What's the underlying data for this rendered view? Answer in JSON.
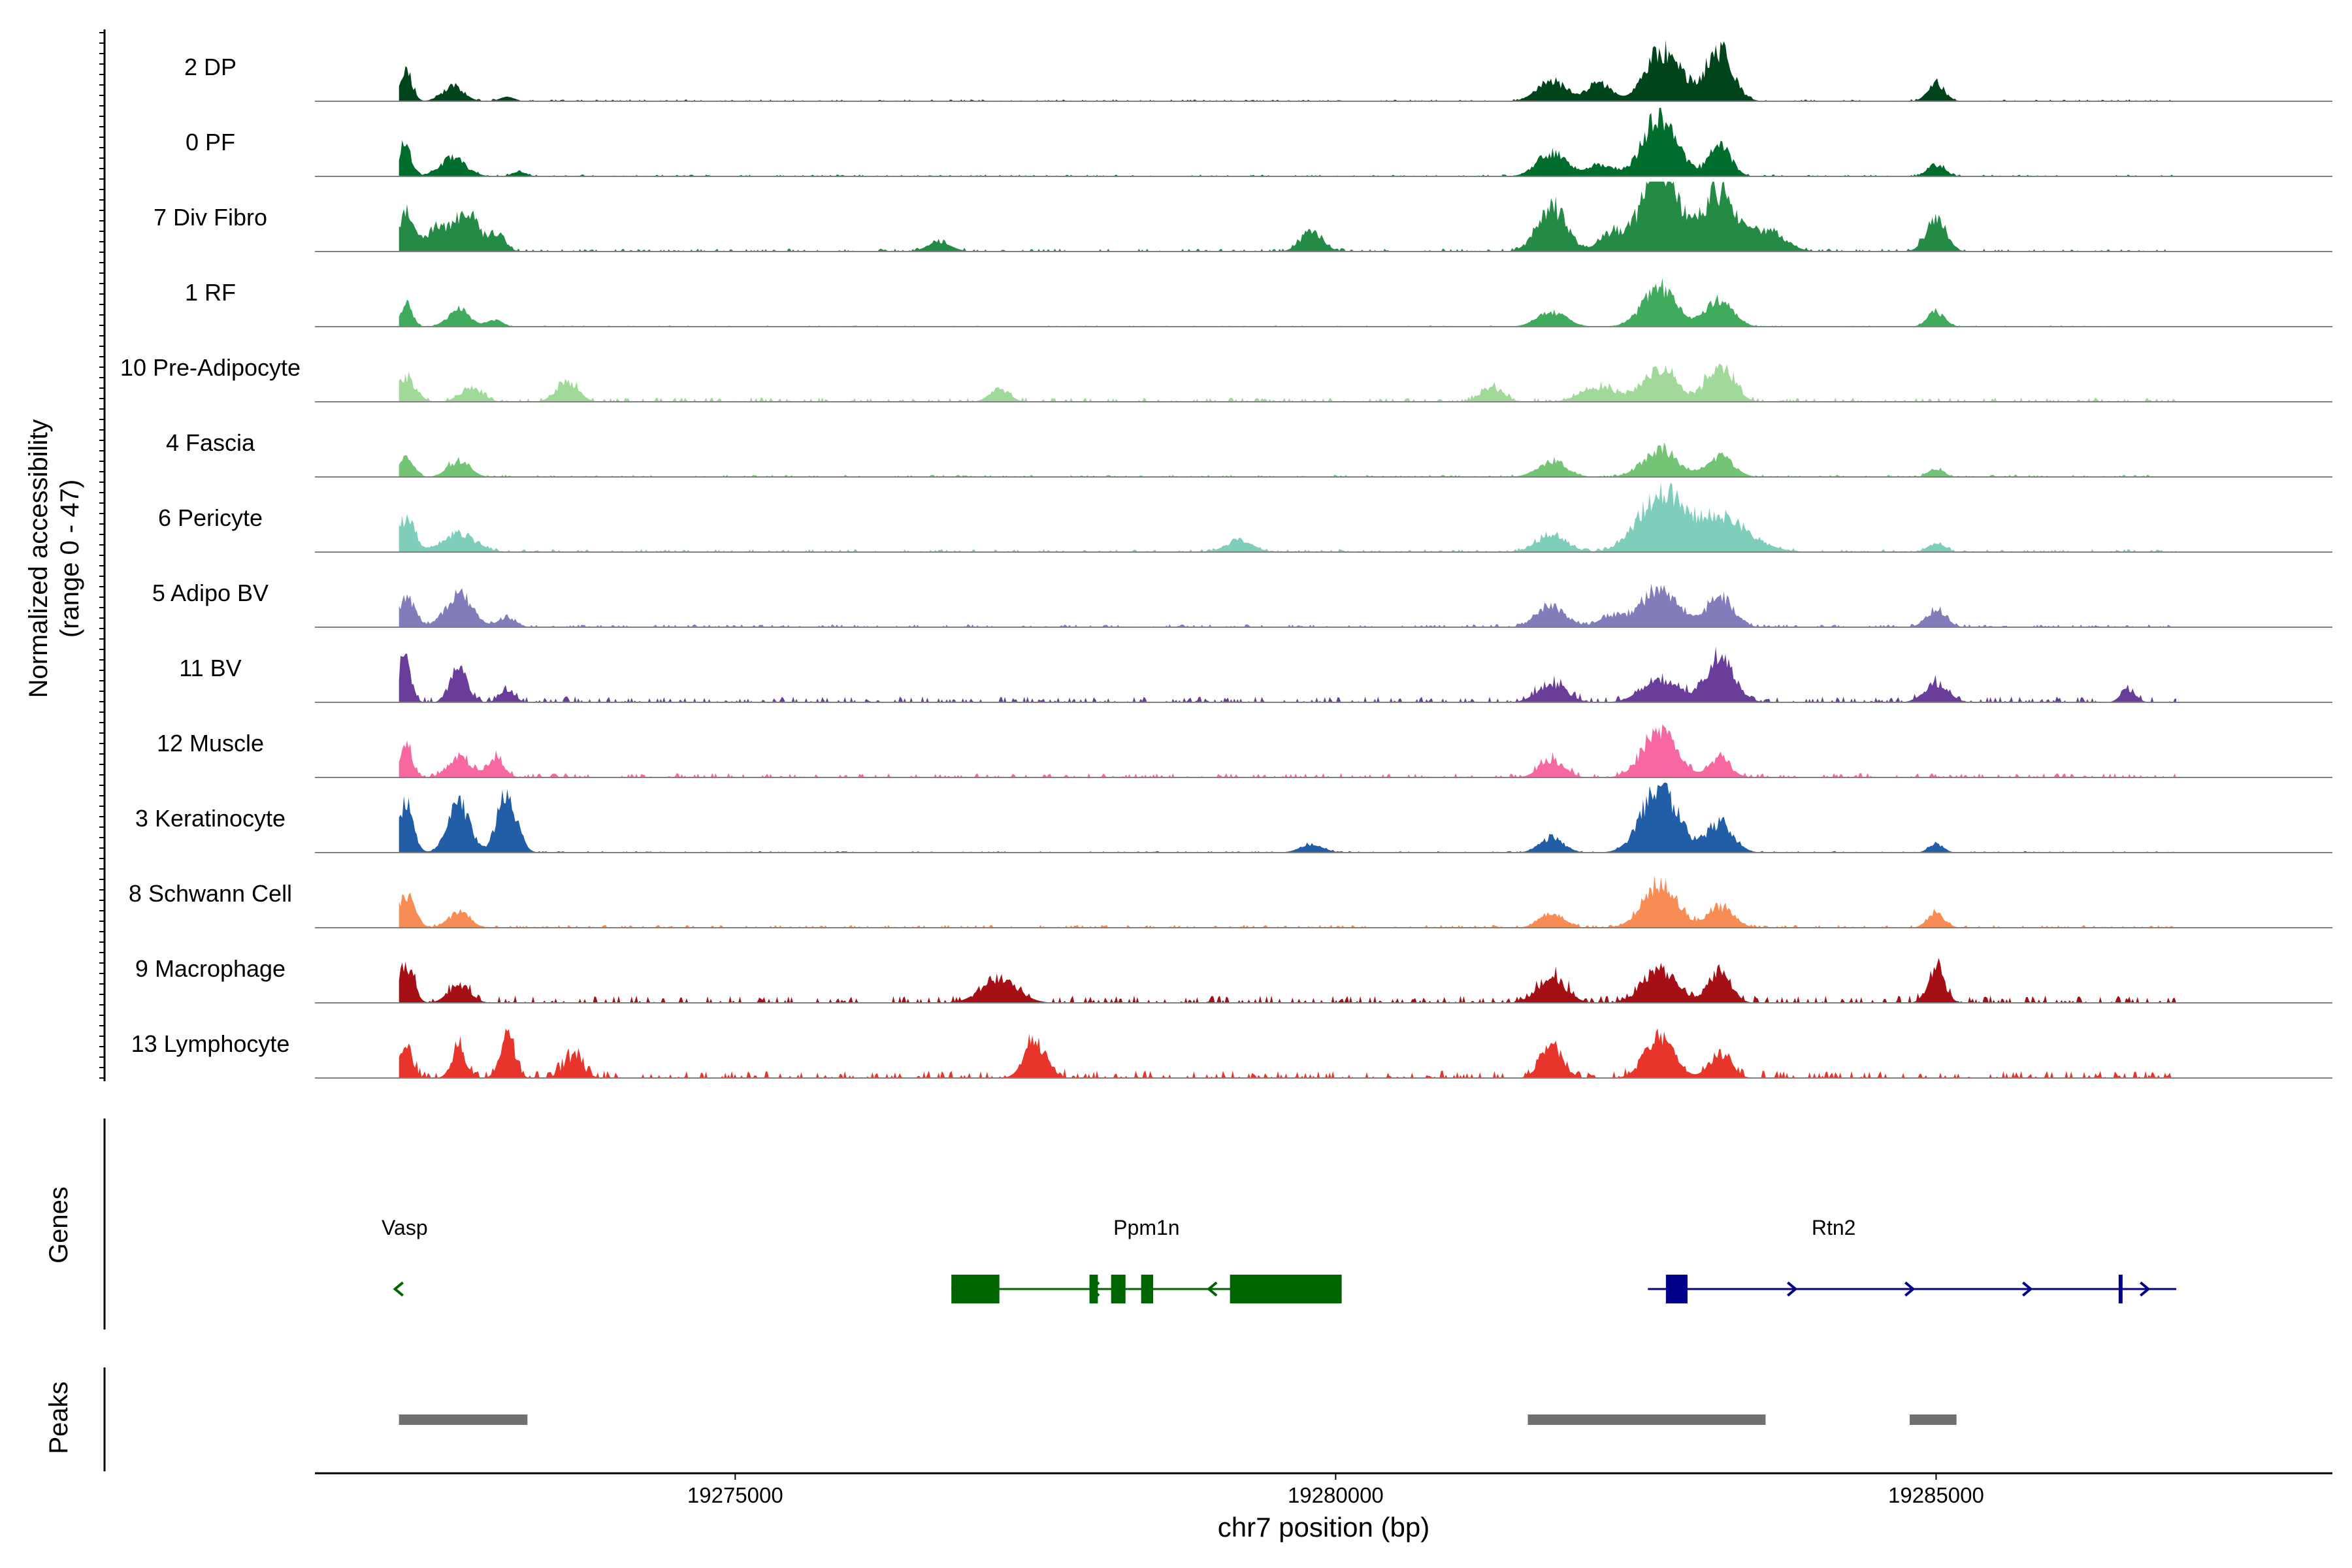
{
  "chart_data": {
    "type": "area",
    "title": "",
    "ylabel": "Normalized accessibility",
    "ylabel_range": "(range 0 - 47)",
    "ylim": [
      0,
      47
    ],
    "xlabel": "chr7 position (bp)",
    "xlim": [
      19271500,
      19288300
    ],
    "x_ticks": [
      19275000,
      19280000,
      19285000
    ],
    "x_tick_labels": [
      "19275000",
      "19280000",
      "19285000"
    ],
    "track_labels": {
      "genes": "Genes",
      "peaks": "Peaks"
    },
    "series": [
      {
        "name": "2 DP",
        "color": "#00441b",
        "peaks": [
          [
            19272260,
            20,
            50
          ],
          [
            19272650,
            10,
            90
          ],
          [
            19273100,
            3,
            60
          ],
          [
            19281800,
            14,
            120
          ],
          [
            19282200,
            12,
            100
          ],
          [
            19282700,
            30,
            130
          ],
          [
            19283200,
            32,
            110
          ],
          [
            19282900,
            8,
            150
          ],
          [
            19285000,
            12,
            70
          ]
        ],
        "noise": 1.2
      },
      {
        "name": "0 PF",
        "color": "#006d2c",
        "peaks": [
          [
            19272250,
            22,
            50
          ],
          [
            19272650,
            12,
            110
          ],
          [
            19273200,
            3,
            60
          ],
          [
            19281800,
            16,
            120
          ],
          [
            19282200,
            8,
            100
          ],
          [
            19282700,
            40,
            140
          ],
          [
            19283200,
            22,
            90
          ],
          [
            19285000,
            8,
            70
          ]
        ],
        "noise": 1.2
      },
      {
        "name": "7 Div Fibro",
        "color": "#238b45",
        "peaks": [
          [
            19272260,
            26,
            60
          ],
          [
            19272500,
            14,
            90
          ],
          [
            19272760,
            25,
            110
          ],
          [
            19273030,
            12,
            60
          ],
          [
            19276700,
            6,
            100
          ],
          [
            19279800,
            14,
            90
          ],
          [
            19281800,
            30,
            120
          ],
          [
            19282300,
            12,
            100
          ],
          [
            19282700,
            55,
            150
          ],
          [
            19283200,
            40,
            140
          ],
          [
            19283600,
            14,
            140
          ],
          [
            19285000,
            24,
            80
          ]
        ],
        "noise": 2.0
      },
      {
        "name": "1 RF",
        "color": "#41ab5d",
        "peaks": [
          [
            19272260,
            16,
            50
          ],
          [
            19272700,
            12,
            90
          ],
          [
            19273000,
            5,
            60
          ],
          [
            19281800,
            10,
            120
          ],
          [
            19282700,
            26,
            140
          ],
          [
            19283200,
            18,
            110
          ],
          [
            19285000,
            10,
            70
          ]
        ],
        "noise": 0.8
      },
      {
        "name": "10 Pre-Adipocyte",
        "color": "#a1d99b",
        "peaks": [
          [
            19272260,
            16,
            80
          ],
          [
            19272800,
            10,
            90
          ],
          [
            19273600,
            14,
            90
          ],
          [
            19277200,
            9,
            80
          ],
          [
            19281300,
            10,
            90
          ],
          [
            19282200,
            10,
            150
          ],
          [
            19282700,
            22,
            140
          ],
          [
            19283200,
            24,
            110
          ]
        ],
        "noise": 3.0
      },
      {
        "name": "4 Fascia",
        "color": "#74c476",
        "peaks": [
          [
            19272260,
            14,
            60
          ],
          [
            19272700,
            11,
            90
          ],
          [
            19281800,
            10,
            120
          ],
          [
            19282700,
            18,
            140
          ],
          [
            19283200,
            14,
            110
          ],
          [
            19285000,
            6,
            60
          ]
        ],
        "noise": 1.5
      },
      {
        "name": "6 Pericyte",
        "color": "#7fcdbb",
        "peaks": [
          [
            19272260,
            22,
            70
          ],
          [
            19272700,
            12,
            140
          ],
          [
            19279200,
            8,
            110
          ],
          [
            19281800,
            12,
            120
          ],
          [
            19282700,
            37,
            180
          ],
          [
            19283200,
            22,
            240
          ],
          [
            19285000,
            6,
            70
          ]
        ],
        "noise": 2.0
      },
      {
        "name": "5 Adipo BV",
        "color": "#807dba",
        "peaks": [
          [
            19272260,
            20,
            70
          ],
          [
            19272700,
            22,
            110
          ],
          [
            19273100,
            7,
            70
          ],
          [
            19281800,
            14,
            120
          ],
          [
            19282300,
            8,
            100
          ],
          [
            19282700,
            26,
            150
          ],
          [
            19283200,
            20,
            110
          ],
          [
            19285000,
            12,
            80
          ]
        ],
        "noise": 2.0
      },
      {
        "name": "11 BV",
        "color": "#6a3d9a",
        "peaks": [
          [
            19272250,
            30,
            50
          ],
          [
            19272700,
            24,
            70
          ],
          [
            19273100,
            9,
            60
          ],
          [
            19281800,
            12,
            120
          ],
          [
            19282700,
            15,
            150
          ],
          [
            19283200,
            30,
            120
          ],
          [
            19285000,
            12,
            100
          ],
          [
            19286600,
            9,
            60
          ]
        ],
        "noise": 4.0
      },
      {
        "name": "12 Muscle",
        "color": "#f768a1",
        "peaks": [
          [
            19272260,
            24,
            50
          ],
          [
            19272700,
            14,
            90
          ],
          [
            19273000,
            14,
            70
          ],
          [
            19281800,
            12,
            100
          ],
          [
            19282700,
            30,
            140
          ],
          [
            19283200,
            12,
            90
          ]
        ],
        "noise": 3.0
      },
      {
        "name": "3 Keratinocyte",
        "color": "#225ea8",
        "peaks": [
          [
            19272260,
            33,
            60
          ],
          [
            19272700,
            32,
            90
          ],
          [
            19273100,
            40,
            80
          ],
          [
            19279800,
            5,
            100
          ],
          [
            19281800,
            10,
            100
          ],
          [
            19282700,
            44,
            150
          ],
          [
            19283200,
            20,
            110
          ],
          [
            19285000,
            6,
            60
          ]
        ],
        "noise": 1.0
      },
      {
        "name": "8 Schwann Cell",
        "color": "#f78d54",
        "peaks": [
          [
            19272260,
            22,
            70
          ],
          [
            19272700,
            10,
            90
          ],
          [
            19281800,
            10,
            100
          ],
          [
            19282700,
            30,
            140
          ],
          [
            19283200,
            14,
            110
          ],
          [
            19285000,
            10,
            70
          ]
        ],
        "noise": 2.0
      },
      {
        "name": "9 Macrophage",
        "color": "#a50f15",
        "peaks": [
          [
            19272260,
            26,
            60
          ],
          [
            19272700,
            12,
            90
          ],
          [
            19277200,
            16,
            150
          ],
          [
            19281800,
            16,
            120
          ],
          [
            19282700,
            22,
            140
          ],
          [
            19283200,
            22,
            90
          ],
          [
            19285000,
            22,
            70
          ]
        ],
        "noise": 5.0
      },
      {
        "name": "13 Lymphocyte",
        "color": "#e7352b",
        "peaks": [
          [
            19272260,
            24,
            50
          ],
          [
            19272700,
            20,
            60
          ],
          [
            19273100,
            28,
            60
          ],
          [
            19273650,
            14,
            80
          ],
          [
            19277500,
            24,
            90
          ],
          [
            19281800,
            22,
            90
          ],
          [
            19282700,
            28,
            120
          ],
          [
            19283200,
            16,
            90
          ]
        ],
        "noise": 5.0
      }
    ],
    "genes": [
      {
        "name": "Vasp",
        "strand": "-",
        "color": "#006400",
        "start": 19272200,
        "end": 19272240,
        "exons": []
      },
      {
        "name": "Ppm1n",
        "strand": "-",
        "color": "#006400",
        "start": 19276800,
        "end": 19280050,
        "exons": [
          [
            19276800,
            19277200
          ],
          [
            19277950,
            19278020
          ],
          [
            19278130,
            19278250
          ],
          [
            19278380,
            19278480
          ],
          [
            19279120,
            19280050
          ]
        ]
      },
      {
        "name": "Rtn2",
        "strand": "+",
        "color": "#00008b",
        "start": 19282600,
        "end": 19287000,
        "exons": [
          [
            19282750,
            19282930
          ],
          [
            19286520,
            19286550
          ]
        ]
      }
    ],
    "peaks": [
      [
        19272200,
        19273270
      ],
      [
        19281600,
        19283580
      ],
      [
        19284780,
        19285170
      ]
    ]
  }
}
